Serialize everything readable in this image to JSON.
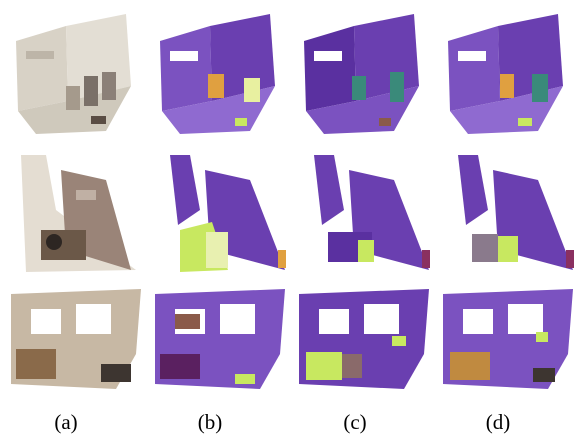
{
  "figure": {
    "column_labels": [
      "(a)",
      "(b)",
      "(c)",
      "(d)"
    ],
    "rows": [
      "room-3d-view",
      "top-down-view-1",
      "top-down-view-2"
    ],
    "colors": {
      "raw_pointcloud": "#d8d2c6",
      "raw_dark": "#6b5848",
      "segment_purple": "#6a3fb0",
      "segment_purple_light": "#8f6ad0",
      "segment_yellow_green": "#c8e860",
      "segment_orange": "#e0a040",
      "segment_teal": "#3a8a7a",
      "segment_brown": "#8a5a4a"
    }
  }
}
